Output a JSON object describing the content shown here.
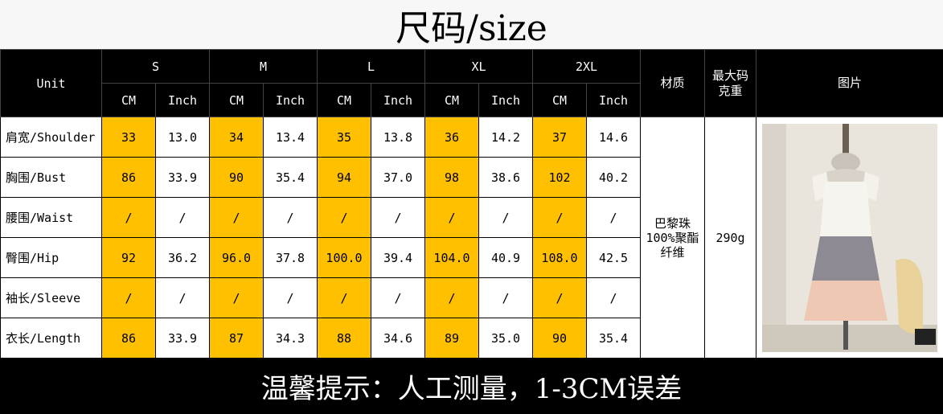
{
  "title": "尺码/size",
  "header": {
    "unit": "Unit",
    "sizes": [
      "S",
      "M",
      "L",
      "XL",
      "2XL"
    ],
    "cm": "CM",
    "inch": "Inch",
    "material": "材质",
    "max_weight_line1": "最大码",
    "max_weight_line2": "克重",
    "picture": "图片"
  },
  "rows": [
    {
      "label": "肩宽/Shoulder",
      "values": [
        [
          "33",
          "13.0"
        ],
        [
          "34",
          "13.4"
        ],
        [
          "35",
          "13.8"
        ],
        [
          "36",
          "14.2"
        ],
        [
          "37",
          "14.6"
        ]
      ]
    },
    {
      "label": "胸围/Bust",
      "values": [
        [
          "86",
          "33.9"
        ],
        [
          "90",
          "35.4"
        ],
        [
          "94",
          "37.0"
        ],
        [
          "98",
          "38.6"
        ],
        [
          "102",
          "40.2"
        ]
      ]
    },
    {
      "label": "腰围/Waist",
      "values": [
        [
          "/",
          "/"
        ],
        [
          "/",
          "/"
        ],
        [
          "/",
          "/"
        ],
        [
          "/",
          "/"
        ],
        [
          "/",
          "/"
        ]
      ]
    },
    {
      "label": "臀围/Hip",
      "values": [
        [
          "92",
          "36.2"
        ],
        [
          "96.0",
          "37.8"
        ],
        [
          "100.0",
          "39.4"
        ],
        [
          "104.0",
          "40.9"
        ],
        [
          "108.0",
          "42.5"
        ]
      ]
    },
    {
      "label": "袖长/Sleeve",
      "values": [
        [
          "/",
          "/"
        ],
        [
          "/",
          "/"
        ],
        [
          "/",
          "/"
        ],
        [
          "/",
          "/"
        ],
        [
          "/",
          "/"
        ]
      ]
    },
    {
      "label": "衣长/Length",
      "values": [
        [
          "86",
          "33.9"
        ],
        [
          "87",
          "34.3"
        ],
        [
          "88",
          "34.6"
        ],
        [
          "89",
          "35.0"
        ],
        [
          "90",
          "35.4"
        ]
      ]
    }
  ],
  "material": {
    "line1": "巴黎珠",
    "line2": "100%聚酯",
    "line3": "纤维"
  },
  "weight": "290g",
  "footer": "温馨提示：人工测量，1-3CM误差",
  "colors": {
    "cm_cell": "#ffc000",
    "header_bg": "#000000"
  }
}
